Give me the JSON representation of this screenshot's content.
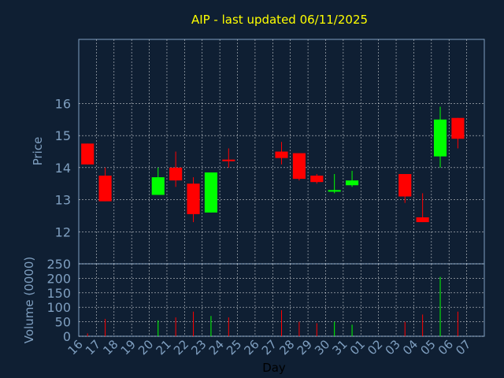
{
  "chart_data": {
    "type": "candlestick",
    "title": "AIP - last updated 06/11/2025",
    "xlabel": "Day",
    "ylabel_price": "Price",
    "ylabel_volume": "Volume (0000)",
    "price_ylim": [
      11.0,
      18.0
    ],
    "price_ticks": [
      "12",
      "13",
      "14",
      "15",
      "16"
    ],
    "volume_ylim": [
      0,
      250
    ],
    "volume_ticks": [
      "0",
      "50",
      "100",
      "150",
      "200",
      "250"
    ],
    "x_tick_labels": [
      "16",
      "17",
      "18",
      "19",
      "20",
      "21",
      "22",
      "23",
      "24",
      "25",
      "26",
      "27",
      "28",
      "29",
      "30",
      "31",
      "01",
      "02",
      "03",
      "04",
      "05",
      "06",
      "07"
    ],
    "grid": true,
    "colors": {
      "up": "#00ff00",
      "down": "#ff0000",
      "background": "#0f1f33",
      "grid": "#ffffff",
      "axis": "#7f9fc0",
      "title": "#ffff00"
    },
    "candles": [
      {
        "day": "16",
        "open": 14.75,
        "close": 14.1,
        "high": 14.75,
        "low": 14.1,
        "volume": 10
      },
      {
        "day": "17",
        "open": 13.75,
        "close": 12.95,
        "high": 14.0,
        "low": 12.95,
        "volume": 60
      },
      {
        "day": "20",
        "open": 13.15,
        "close": 13.7,
        "high": 14.0,
        "low": 13.15,
        "volume": 55
      },
      {
        "day": "21",
        "open": 14.0,
        "close": 13.6,
        "high": 14.5,
        "low": 13.4,
        "volume": 65
      },
      {
        "day": "22",
        "open": 13.5,
        "close": 12.55,
        "high": 13.7,
        "low": 12.3,
        "volume": 85
      },
      {
        "day": "23",
        "open": 12.6,
        "close": 13.85,
        "high": 13.85,
        "low": 12.6,
        "volume": 70
      },
      {
        "day": "24",
        "open": 14.25,
        "close": 14.2,
        "high": 14.6,
        "low": 14.0,
        "volume": 65
      },
      {
        "day": "27",
        "open": 14.5,
        "close": 14.3,
        "high": 14.8,
        "low": 14.1,
        "volume": 90
      },
      {
        "day": "28",
        "open": 14.45,
        "close": 13.65,
        "high": 14.45,
        "low": 13.6,
        "volume": 50
      },
      {
        "day": "29",
        "open": 13.75,
        "close": 13.55,
        "high": 13.8,
        "low": 13.5,
        "volume": 45
      },
      {
        "day": "30",
        "open": 13.25,
        "close": 13.3,
        "high": 13.8,
        "low": 13.2,
        "volume": 50
      },
      {
        "day": "31",
        "open": 13.45,
        "close": 13.6,
        "high": 13.9,
        "low": 13.4,
        "volume": 40
      },
      {
        "day": "03",
        "open": 13.8,
        "close": 13.1,
        "high": 13.8,
        "low": 12.9,
        "volume": 50
      },
      {
        "day": "04",
        "open": 12.45,
        "close": 12.3,
        "high": 13.2,
        "low": 12.3,
        "volume": 75
      },
      {
        "day": "05",
        "open": 14.35,
        "close": 15.5,
        "high": 15.9,
        "low": 14.0,
        "volume": 205
      },
      {
        "day": "06",
        "open": 15.55,
        "close": 14.9,
        "high": 15.55,
        "low": 14.6,
        "volume": 85
      }
    ]
  }
}
